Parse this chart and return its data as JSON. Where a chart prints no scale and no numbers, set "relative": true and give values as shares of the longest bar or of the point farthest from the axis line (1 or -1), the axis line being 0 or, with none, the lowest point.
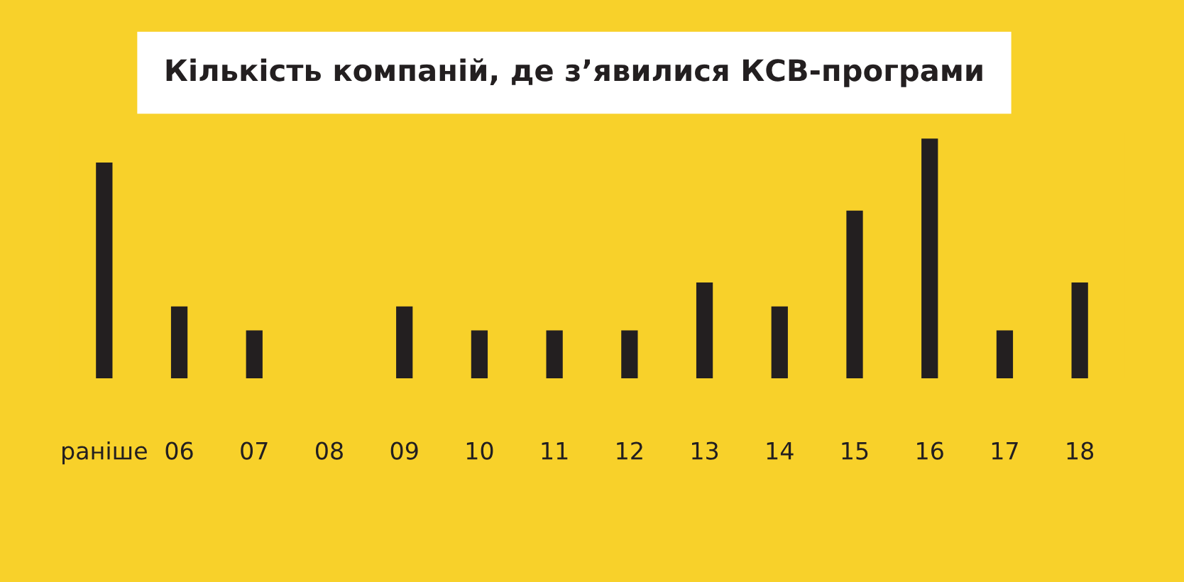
{
  "chart_data": {
    "type": "bar",
    "title": "Кількість компаній, де з’явилися КСВ-програми",
    "categories": [
      "раніше",
      "06",
      "07",
      "08",
      "09",
      "10",
      "11",
      "12",
      "13",
      "14",
      "15",
      "16",
      "17",
      "18"
    ],
    "values": [
      0.9,
      0.3,
      0.2,
      0,
      0.3,
      0.2,
      0.2,
      0.2,
      0.4,
      0.3,
      0.7,
      1,
      0.2,
      0.4
    ],
    "color": "#231f20",
    "relative": true,
    "grid": false,
    "legend": false
  }
}
